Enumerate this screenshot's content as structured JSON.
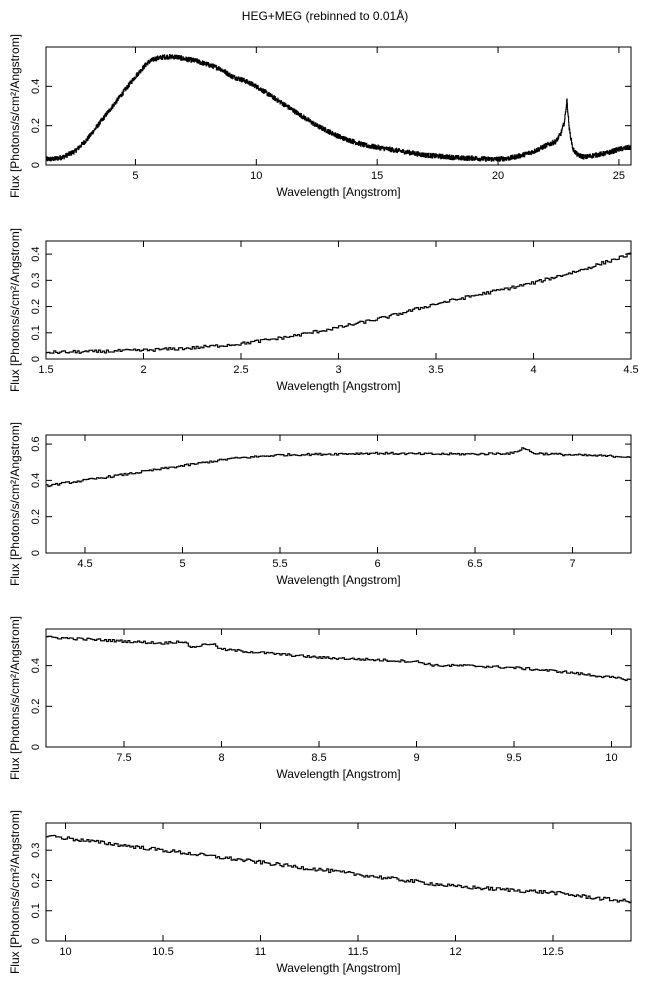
{
  "title": "HEG+MEG (rebinned to 0.01Å)",
  "chart_data": [
    {
      "type": "line",
      "xlabel": "Wavelength [Angstrom]",
      "ylabel": "Flux [Photons/s/cm²/Angstrom]",
      "xlim": [
        1.3,
        25.5
      ],
      "ylim": [
        0,
        0.6
      ],
      "xticks": [
        5,
        10,
        15,
        20,
        25
      ],
      "yticks": [
        0,
        0.2,
        0.4
      ],
      "series": [
        {
          "x": [
            1.3,
            1.6,
            2.0,
            2.5,
            3.0,
            3.5,
            4.0,
            4.5,
            5.0,
            5.5,
            5.8,
            6.2,
            6.7,
            7.0,
            7.5,
            8.0,
            8.5,
            9.0,
            9.5,
            10.0,
            10.5,
            11.0,
            11.5,
            12.0,
            12.5,
            13.0,
            13.5,
            14.0,
            14.5,
            15.0,
            15.5,
            16.0,
            16.5,
            17.0,
            17.5,
            18.0,
            18.5,
            19.0,
            19.5,
            20.0,
            20.5,
            21.0,
            21.5,
            22.0,
            22.4,
            22.6,
            22.75,
            22.85,
            22.95,
            23.1,
            23.3,
            23.6,
            24.0,
            24.5,
            25.0,
            25.5
          ],
          "y": [
            0.03,
            0.03,
            0.04,
            0.07,
            0.13,
            0.21,
            0.29,
            0.37,
            0.45,
            0.52,
            0.54,
            0.55,
            0.55,
            0.54,
            0.53,
            0.51,
            0.49,
            0.45,
            0.43,
            0.4,
            0.36,
            0.32,
            0.28,
            0.24,
            0.2,
            0.17,
            0.14,
            0.12,
            0.1,
            0.09,
            0.08,
            0.07,
            0.06,
            0.05,
            0.045,
            0.04,
            0.035,
            0.035,
            0.03,
            0.03,
            0.035,
            0.05,
            0.07,
            0.1,
            0.12,
            0.16,
            0.22,
            0.33,
            0.18,
            0.08,
            0.05,
            0.04,
            0.05,
            0.06,
            0.08,
            0.09
          ]
        }
      ]
    },
    {
      "type": "line",
      "xlabel": "Wavelength [Angstrom]",
      "ylabel": "Flux [Photons/s/cm²/Angstrom]",
      "xlim": [
        1.5,
        4.5
      ],
      "ylim": [
        0,
        0.45
      ],
      "xticks": [
        1.5,
        2,
        2.5,
        3,
        3.5,
        4,
        4.5
      ],
      "yticks": [
        0,
        0.1,
        0.2,
        0.3,
        0.4
      ],
      "series": [
        {
          "x": [
            1.5,
            1.75,
            2.0,
            2.25,
            2.5,
            2.75,
            3.0,
            3.25,
            3.5,
            3.75,
            4.0,
            4.25,
            4.5
          ],
          "y": [
            0.025,
            0.028,
            0.033,
            0.042,
            0.058,
            0.085,
            0.12,
            0.16,
            0.21,
            0.25,
            0.29,
            0.34,
            0.4
          ]
        }
      ]
    },
    {
      "type": "line",
      "xlabel": "Wavelength [Angstrom]",
      "ylabel": "Flux [Photons/s/cm²/Angstrom]",
      "xlim": [
        4.3,
        7.3
      ],
      "ylim": [
        0,
        0.65
      ],
      "xticks": [
        4.5,
        5,
        5.5,
        6,
        6.5,
        7
      ],
      "yticks": [
        0,
        0.2,
        0.4,
        0.6
      ],
      "series": [
        {
          "x": [
            4.3,
            4.5,
            4.75,
            5.0,
            5.25,
            5.5,
            5.75,
            6.0,
            6.25,
            6.5,
            6.7,
            6.75,
            6.8,
            7.0,
            7.3
          ],
          "y": [
            0.37,
            0.4,
            0.44,
            0.48,
            0.52,
            0.54,
            0.545,
            0.55,
            0.545,
            0.545,
            0.55,
            0.58,
            0.55,
            0.54,
            0.53
          ]
        }
      ]
    },
    {
      "type": "line",
      "xlabel": "Wavelength [Angstrom]",
      "ylabel": "Flux [Photons/s/cm²/Angstrom]",
      "xlim": [
        7.1,
        10.1
      ],
      "ylim": [
        0,
        0.58
      ],
      "xticks": [
        7.5,
        8,
        8.5,
        9,
        9.5,
        10
      ],
      "yticks": [
        0,
        0.2,
        0.4
      ],
      "series": [
        {
          "x": [
            7.1,
            7.3,
            7.5,
            7.7,
            7.8,
            7.85,
            7.9,
            7.95,
            8.0,
            8.25,
            8.5,
            8.75,
            9.0,
            9.1,
            9.25,
            9.5,
            9.75,
            10.1
          ],
          "y": [
            0.54,
            0.53,
            0.52,
            0.51,
            0.52,
            0.49,
            0.5,
            0.51,
            0.48,
            0.46,
            0.44,
            0.43,
            0.42,
            0.4,
            0.4,
            0.39,
            0.37,
            0.33
          ]
        }
      ]
    },
    {
      "type": "line",
      "xlabel": "Wavelength [Angstrom]",
      "ylabel": "Flux [Photons/s/cm²/Angstrom]",
      "xlim": [
        9.9,
        12.9
      ],
      "ylim": [
        0,
        0.39
      ],
      "xticks": [
        10,
        10.5,
        11,
        11.5,
        12,
        12.5
      ],
      "yticks": [
        0,
        0.1,
        0.2,
        0.3
      ],
      "series": [
        {
          "x": [
            9.9,
            10.0,
            10.25,
            10.5,
            10.75,
            11.0,
            11.25,
            11.5,
            11.75,
            12.0,
            12.25,
            12.5,
            12.75,
            12.9
          ],
          "y": [
            0.35,
            0.34,
            0.32,
            0.3,
            0.28,
            0.26,
            0.24,
            0.22,
            0.2,
            0.18,
            0.17,
            0.16,
            0.14,
            0.13
          ]
        }
      ]
    }
  ]
}
